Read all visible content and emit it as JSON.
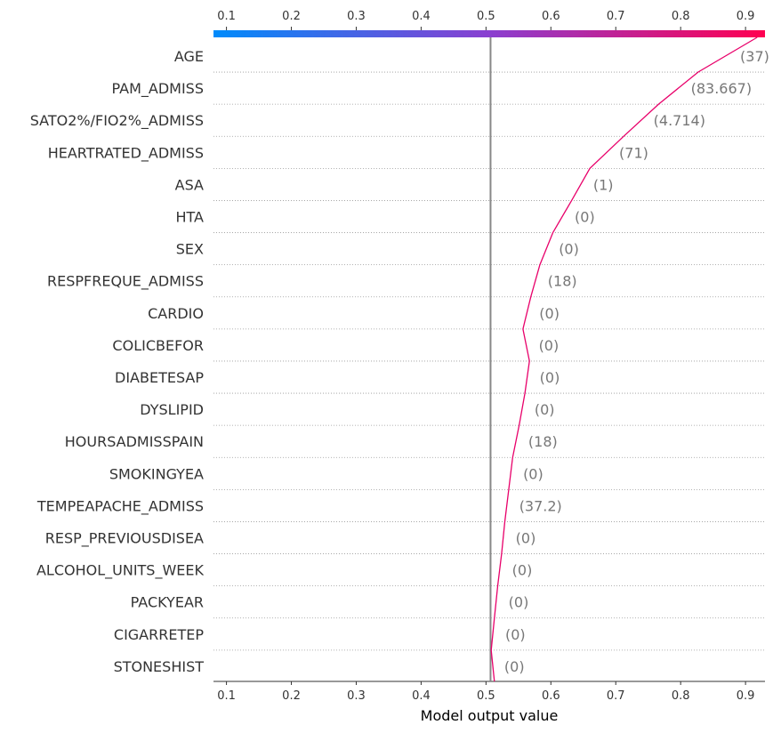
{
  "chart_data": {
    "type": "line",
    "title": "",
    "xlabel": "Model output value",
    "ylabel": "",
    "xlim": [
      0.08,
      0.93
    ],
    "x_ticks": [
      0.1,
      0.2,
      0.3,
      0.4,
      0.5,
      0.6,
      0.7,
      0.8,
      0.9
    ],
    "tick_labels": [
      "0.1",
      "0.2",
      "0.3",
      "0.4",
      "0.5",
      "0.6",
      "0.7",
      "0.8",
      "0.9"
    ],
    "base_value": 0.507,
    "colorbar": {
      "low_color": "#008bfb",
      "mid_color": "#8a3fd0",
      "high_color": "#ff0051"
    },
    "line_color": "#e8006a",
    "grid": "dotted horizontal lines between features",
    "features": [
      {
        "name": "AGE",
        "value_label": "(37)",
        "output": 0.827
      },
      {
        "name": "PAM_ADMISS",
        "value_label": "(83.667)",
        "output": 0.766
      },
      {
        "name": "SATO2%/FIO2%_ADMISS",
        "value_label": "(4.714)",
        "output": 0.712
      },
      {
        "name": "HEARTRATED_ADMISS",
        "value_label": "(71)",
        "output": 0.66
      },
      {
        "name": "ASA",
        "value_label": "(1)",
        "output": 0.632
      },
      {
        "name": "HTA",
        "value_label": "(0)",
        "output": 0.603
      },
      {
        "name": "SEX",
        "value_label": "(0)",
        "output": 0.583
      },
      {
        "name": "RESPFREQUE_ADMISS",
        "value_label": "(18)",
        "output": 0.569
      },
      {
        "name": "CARDIO",
        "value_label": "(0)",
        "output": 0.557
      },
      {
        "name": "COLICBEFOR",
        "value_label": "(0)",
        "output": 0.567
      },
      {
        "name": "DIABETESAP",
        "value_label": "(0)",
        "output": 0.56
      },
      {
        "name": "DYSLIPID",
        "value_label": "(0)",
        "output": 0.551
      },
      {
        "name": "HOURSADMISSPAIN",
        "value_label": "(18)",
        "output": 0.541
      },
      {
        "name": "SMOKINGYEA",
        "value_label": "(0)",
        "output": 0.535
      },
      {
        "name": "TEMPEAPACHE_ADMISS",
        "value_label": "(37.2)",
        "output": 0.529
      },
      {
        "name": "RESP_PREVIOUSDISEA",
        "value_label": "(0)",
        "output": 0.524
      },
      {
        "name": "ALCOHOL_UNITS_WEEK",
        "value_label": "(0)",
        "output": 0.518
      },
      {
        "name": "PACKYEAR",
        "value_label": "(0)",
        "output": 0.513
      },
      {
        "name": "CIGARRETEP",
        "value_label": "(0)",
        "output": 0.508
      },
      {
        "name": "STONESHIST",
        "value_label": "(0)",
        "output": 0.51
      }
    ],
    "top_output": 0.918,
    "bottom_output": 0.513
  }
}
